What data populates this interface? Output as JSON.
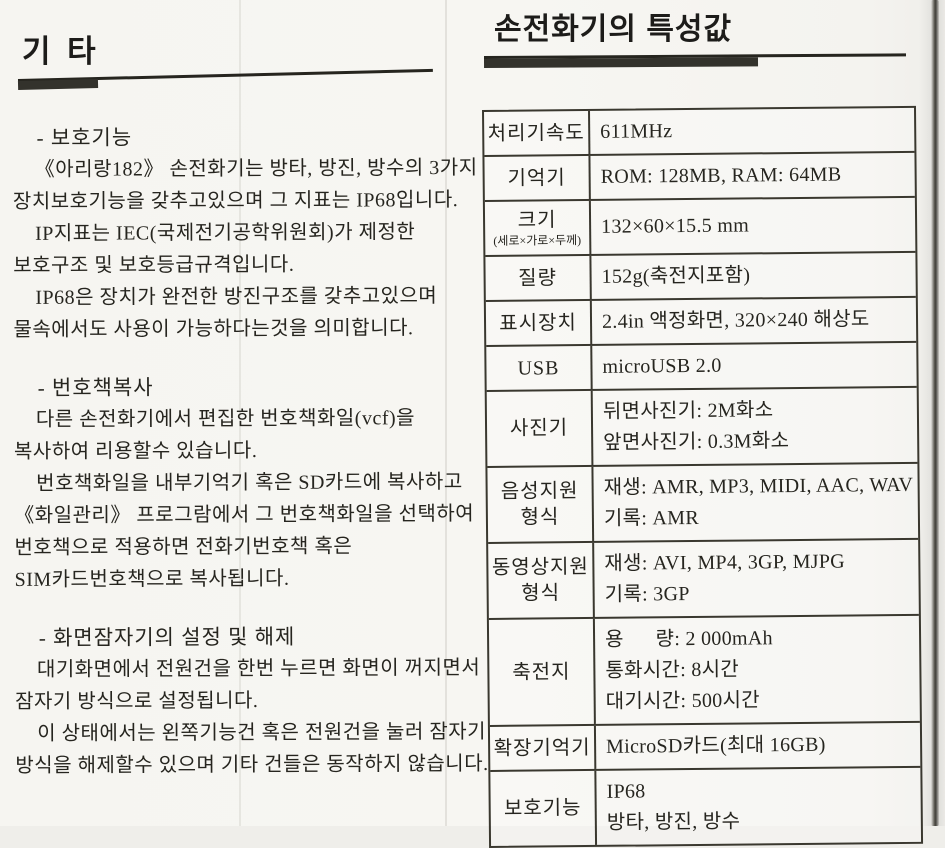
{
  "left": {
    "title": "기 타",
    "sections": [
      {
        "heading": "- 보호기능",
        "paragraphs": [
          [
            "《아리랑182》 손전화기는 방타, 방진, 방수의 3가지",
            "장치보호기능을 갖추고있으며 그 지표는 IP68입니다."
          ],
          [
            "IP지표는 IEC(국제전기공학위원회)가 제정한",
            "보호구조 및 보호등급규격입니다."
          ],
          [
            "IP68은 장치가 완전한 방진구조를 갖추고있으며",
            "물속에서도 사용이 가능하다는것을 의미합니다."
          ]
        ]
      },
      {
        "heading": "- 번호책복사",
        "paragraphs": [
          [
            "다른 손전화기에서 편집한 번호책화일(vcf)을",
            "복사하여 리용할수 있습니다."
          ],
          [
            "번호책화일을 내부기억기 혹은 SD카드에 복사하고",
            "《화일관리》 프로그람에서 그 번호책화일을 선택하여",
            "번호책으로 적용하면 전화기번호책 혹은",
            "SIM카드번호책으로 복사됩니다."
          ]
        ]
      },
      {
        "heading": "- 화면잠자기의 설정 및 해제",
        "paragraphs": [
          [
            "대기화면에서 전원건을 한번 누르면 화면이 꺼지면서",
            "잠자기 방식으로 설정됩니다."
          ],
          [
            "이 상태에서는 왼쪽기능건 혹은 전원건을 눌러 잠자기",
            "방식을 해제할수 있으며 기타 건들은 동작하지 않습니다."
          ]
        ]
      }
    ]
  },
  "right": {
    "title": "손전화기의 특성값",
    "table": {
      "rows": [
        {
          "label": [
            "처리기속도"
          ],
          "value": [
            "611MHz"
          ]
        },
        {
          "label": [
            "기억기"
          ],
          "value": [
            "ROM: 128MB, RAM: 64MB"
          ]
        },
        {
          "label": [
            "크기"
          ],
          "sublabel": "(세로×가로×두께)",
          "value": [
            "132×60×15.5 mm"
          ]
        },
        {
          "label": [
            "질량"
          ],
          "value": [
            "152g(축전지포함)"
          ]
        },
        {
          "label": [
            "표시장치"
          ],
          "value": [
            "2.4in 액정화면, 320×240 해상도"
          ]
        },
        {
          "label": [
            "USB"
          ],
          "value": [
            "microUSB 2.0"
          ]
        },
        {
          "label": [
            "사진기"
          ],
          "value": [
            "뒤면사진기: 2M화소",
            "앞면사진기: 0.3M화소"
          ]
        },
        {
          "label": [
            "음성지원",
            "형식"
          ],
          "value": [
            "재생: AMR, MP3, MIDI, AAC, WAV",
            "기록: AMR"
          ]
        },
        {
          "label": [
            "동영상지원",
            "형식"
          ],
          "value": [
            "재생: AVI, MP4, 3GP, MJPG",
            "기록: 3GP"
          ]
        },
        {
          "label": [
            "축전지"
          ],
          "value": [
            "용      량: 2 000mAh",
            "통화시간: 8시간",
            "대기시간: 500시간"
          ]
        },
        {
          "label": [
            "확장기억기"
          ],
          "value": [
            "MicroSD카드(최대 16GB)"
          ]
        },
        {
          "label": [
            "보호기능"
          ],
          "value": [
            "IP68",
            "방타, 방진, 방수"
          ]
        }
      ]
    }
  }
}
